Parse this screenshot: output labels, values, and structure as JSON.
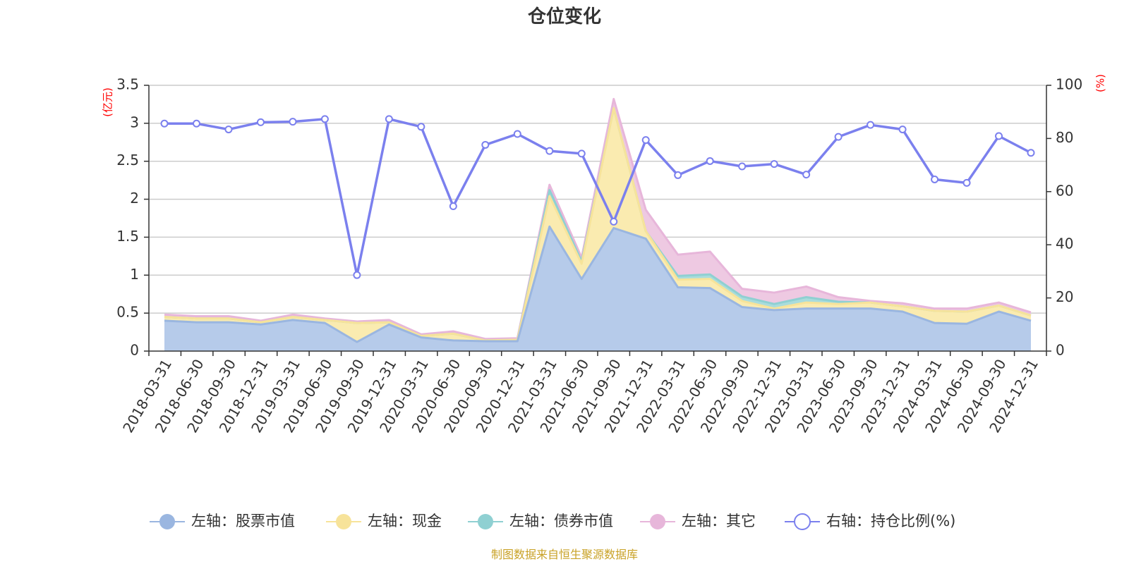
{
  "chart_data": {
    "type": "area",
    "title": "仓位变化",
    "y_left_unit": "(亿元)",
    "y_right_unit": "(%)",
    "ylim_left": [
      0,
      3.5
    ],
    "ylim_right": [
      0,
      100
    ],
    "y_left_ticks": [
      "0",
      "0.5",
      "1",
      "1.5",
      "2",
      "2.5",
      "3",
      "3.5"
    ],
    "y_right_ticks": [
      "0",
      "20",
      "40",
      "60",
      "80",
      "100"
    ],
    "categories": [
      "2018-03-31",
      "2018-06-30",
      "2018-09-30",
      "2018-12-31",
      "2019-03-31",
      "2019-06-30",
      "2019-09-30",
      "2019-12-31",
      "2020-03-31",
      "2020-06-30",
      "2020-09-30",
      "2020-12-31",
      "2021-03-31",
      "2021-06-30",
      "2021-09-30",
      "2021-12-31",
      "2022-03-31",
      "2022-06-30",
      "2022-09-30",
      "2022-12-31",
      "2023-03-31",
      "2023-06-30",
      "2023-09-30",
      "2023-12-31",
      "2024-03-31",
      "2024-06-30",
      "2024-09-30",
      "2024-12-31"
    ],
    "series": [
      {
        "name": "左轴：股票市值",
        "axis": "left",
        "kind": "area",
        "color": "#9ab6e0",
        "fill": "#b6cbea",
        "values": [
          0.4,
          0.38,
          0.38,
          0.35,
          0.41,
          0.37,
          0.12,
          0.35,
          0.18,
          0.14,
          0.13,
          0.13,
          1.64,
          0.95,
          1.62,
          1.48,
          0.84,
          0.83,
          0.58,
          0.54,
          0.56,
          0.56,
          0.56,
          0.52,
          0.37,
          0.36,
          0.52,
          0.4
        ]
      },
      {
        "name": "左轴：现金",
        "axis": "left",
        "kind": "area",
        "color": "#f7e39a",
        "fill": "#faebb0",
        "values": [
          0.05,
          0.05,
          0.05,
          0.03,
          0.04,
          0.04,
          0.25,
          0.03,
          0.02,
          0.09,
          0.01,
          0.02,
          0.4,
          0.2,
          1.58,
          0.1,
          0.1,
          0.12,
          0.08,
          0.02,
          0.08,
          0.06,
          0.08,
          0.07,
          0.16,
          0.16,
          0.08,
          0.07
        ]
      },
      {
        "name": "左轴：债券市值",
        "axis": "left",
        "kind": "area",
        "color": "#8fd0d2",
        "fill": "#a9dcdc",
        "values": [
          0.0,
          0.0,
          0.0,
          0.0,
          0.0,
          0.0,
          0.0,
          0.0,
          0.0,
          0.0,
          0.0,
          0.0,
          0.08,
          0.03,
          0.0,
          0.0,
          0.05,
          0.06,
          0.06,
          0.06,
          0.07,
          0.03,
          0.0,
          0.0,
          0.0,
          0.0,
          0.0,
          0.0
        ]
      },
      {
        "name": "左轴：其它",
        "axis": "left",
        "kind": "area",
        "color": "#e7b6da",
        "fill": "#eec9e2",
        "values": [
          0.03,
          0.03,
          0.03,
          0.02,
          0.03,
          0.02,
          0.02,
          0.03,
          0.02,
          0.03,
          0.02,
          0.02,
          0.07,
          0.05,
          0.12,
          0.28,
          0.28,
          0.3,
          0.1,
          0.15,
          0.14,
          0.06,
          0.02,
          0.04,
          0.03,
          0.04,
          0.04,
          0.04
        ]
      },
      {
        "name": "右轴：持仓比例(%)",
        "axis": "right",
        "kind": "line",
        "color": "#7b80ee",
        "values": [
          85.6,
          85.6,
          83.4,
          86.1,
          86.3,
          87.3,
          28.6,
          87.3,
          84.4,
          54.5,
          77.6,
          81.7,
          75.3,
          74.3,
          48.7,
          79.4,
          66.2,
          71.5,
          69.5,
          70.4,
          66.4,
          80.6,
          85.1,
          83.4,
          64.6,
          63.3,
          80.9,
          74.6
        ]
      }
    ],
    "grid": true,
    "legend_position": "bottom",
    "source": "制图数据来自恒生聚源数据库"
  }
}
